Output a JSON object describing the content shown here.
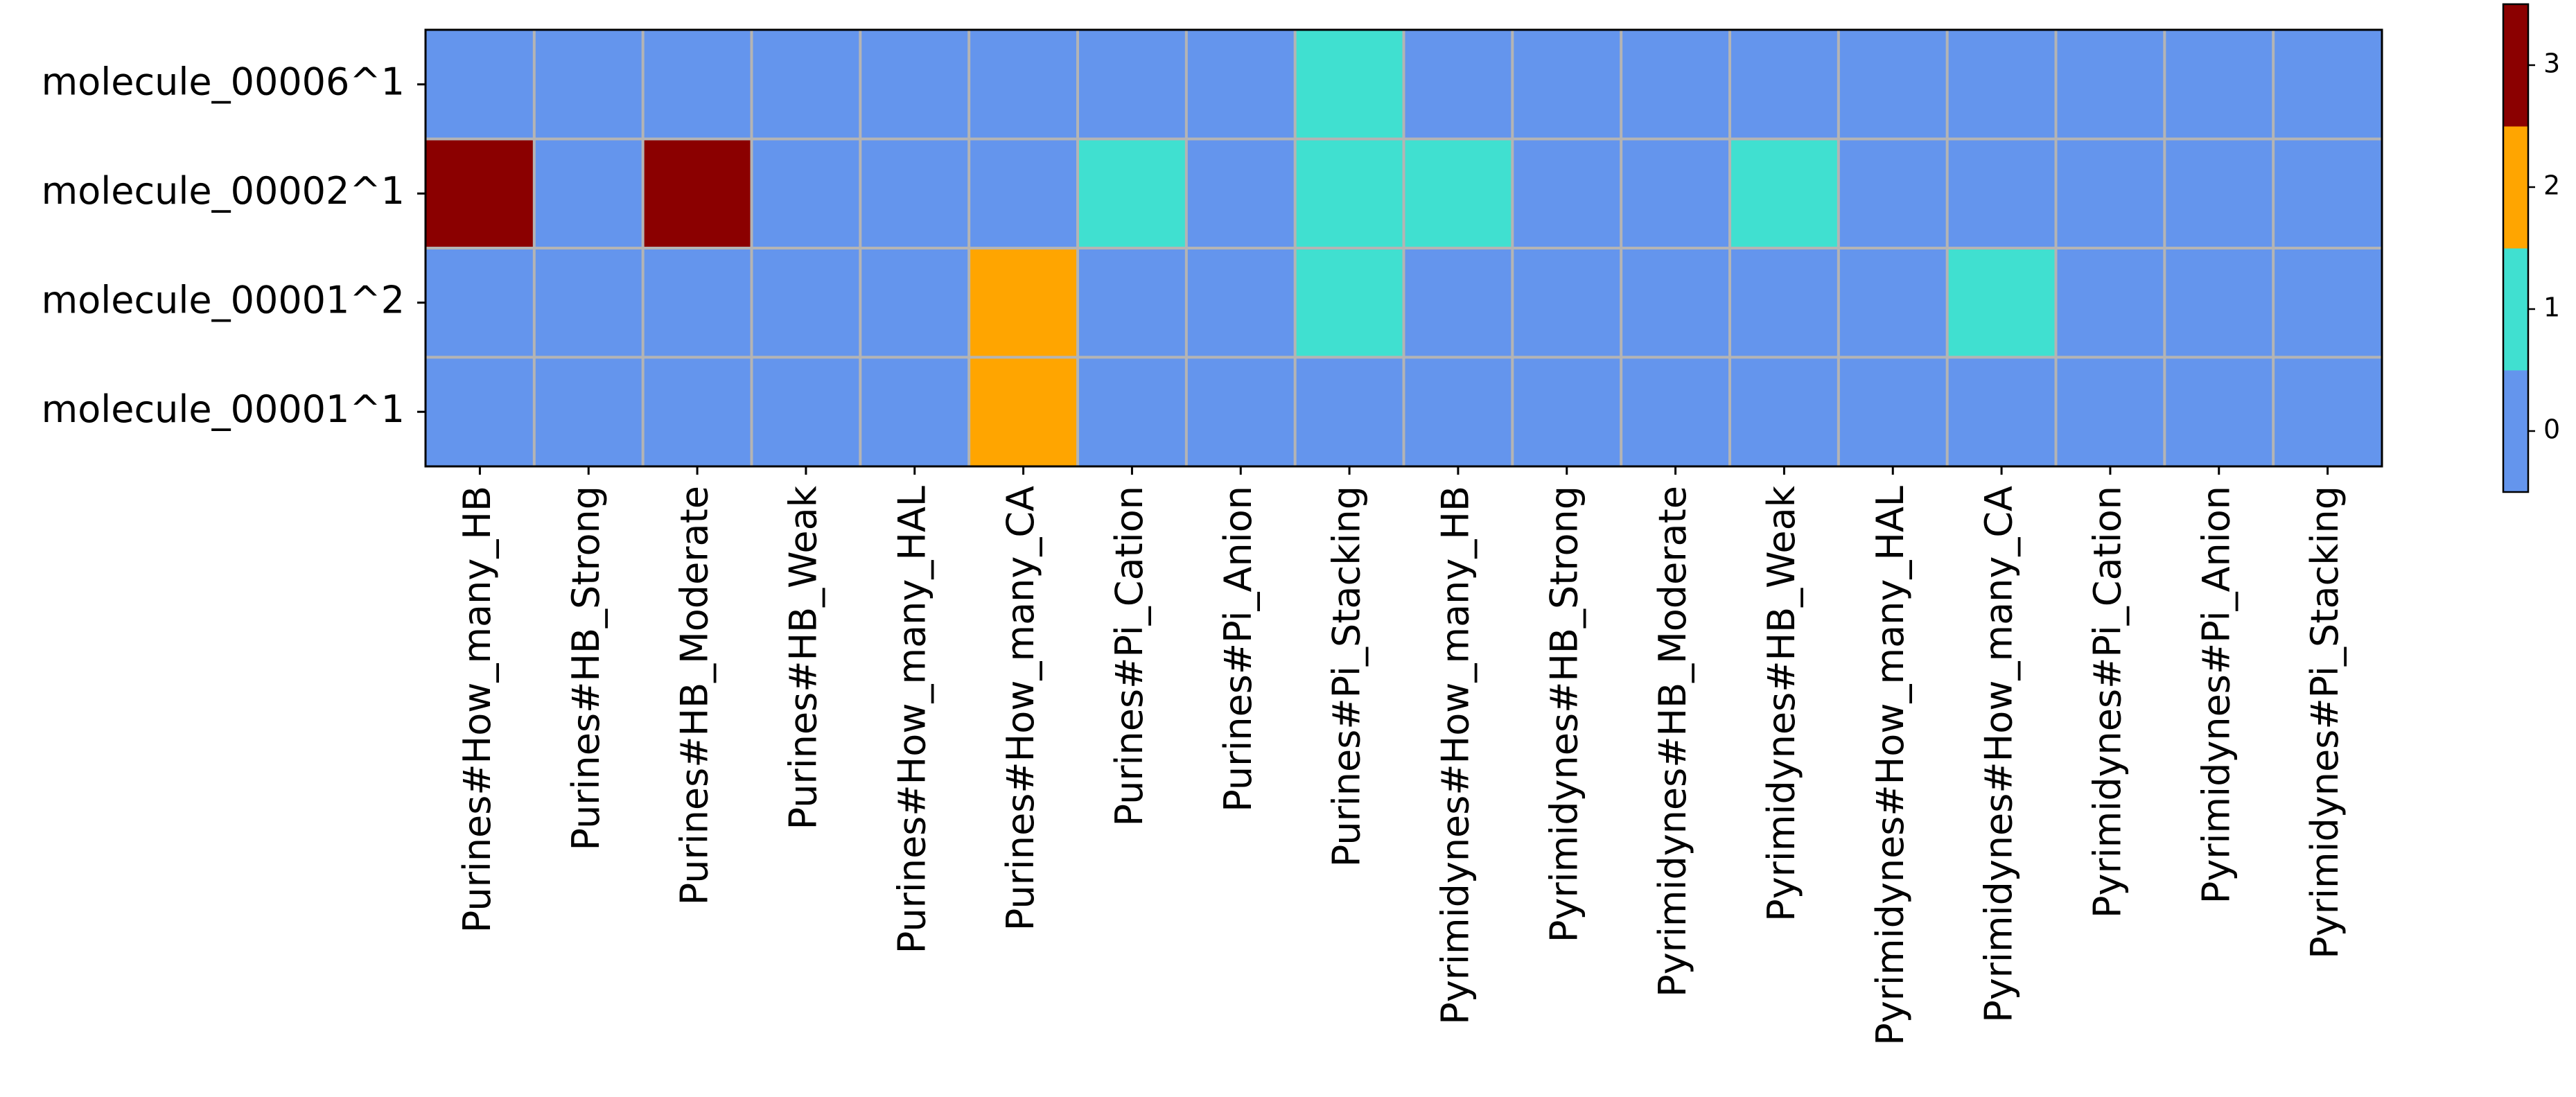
{
  "chart_data": {
    "type": "heatmap",
    "title": "",
    "xlabel": "",
    "ylabel": "",
    "rows": [
      "molecule_00006^1",
      "molecule_00002^1",
      "molecule_00001^2",
      "molecule_00001^1"
    ],
    "columns": [
      "Purines#How_many_HB",
      "Purines#HB_Strong",
      "Purines#HB_Moderate",
      "Purines#HB_Weak",
      "Purines#How_many_HAL",
      "Purines#How_many_CA",
      "Purines#Pi_Cation",
      "Purines#Pi_Anion",
      "Purines#Pi_Stacking",
      "Pyrimidynes#How_many_HB",
      "Pyrimidynes#HB_Strong",
      "Pyrimidynes#HB_Moderate",
      "Pyrimidynes#HB_Weak",
      "Pyrimidynes#How_many_HAL",
      "Pyrimidynes#How_many_CA",
      "Pyrimidynes#Pi_Cation",
      "Pyrimidynes#Pi_Anion",
      "Pyrimidynes#Pi_Stacking"
    ],
    "values": [
      [
        0,
        0,
        0,
        0,
        0,
        0,
        0,
        0,
        1,
        0,
        0,
        0,
        0,
        0,
        0,
        0,
        0,
        0
      ],
      [
        3,
        0,
        3,
        0,
        0,
        0,
        1,
        0,
        1,
        1,
        0,
        0,
        1,
        0,
        0,
        0,
        0,
        0
      ],
      [
        0,
        0,
        0,
        0,
        0,
        2,
        0,
        0,
        1,
        0,
        0,
        0,
        0,
        0,
        1,
        0,
        0,
        0
      ],
      [
        0,
        0,
        0,
        0,
        0,
        2,
        0,
        0,
        0,
        0,
        0,
        0,
        0,
        0,
        0,
        0,
        0,
        0
      ]
    ],
    "colormap": {
      "0": "#6495ed",
      "1": "#40e0d0",
      "2": "#ffa500",
      "3": "#8b0000"
    },
    "colorbar": {
      "range": [
        -0.5,
        3.5
      ],
      "ticks": [
        "0",
        "1",
        "2",
        "3"
      ]
    },
    "gridline_color": "#b4b4b4",
    "grid": true,
    "legend": "colorbar-right"
  }
}
